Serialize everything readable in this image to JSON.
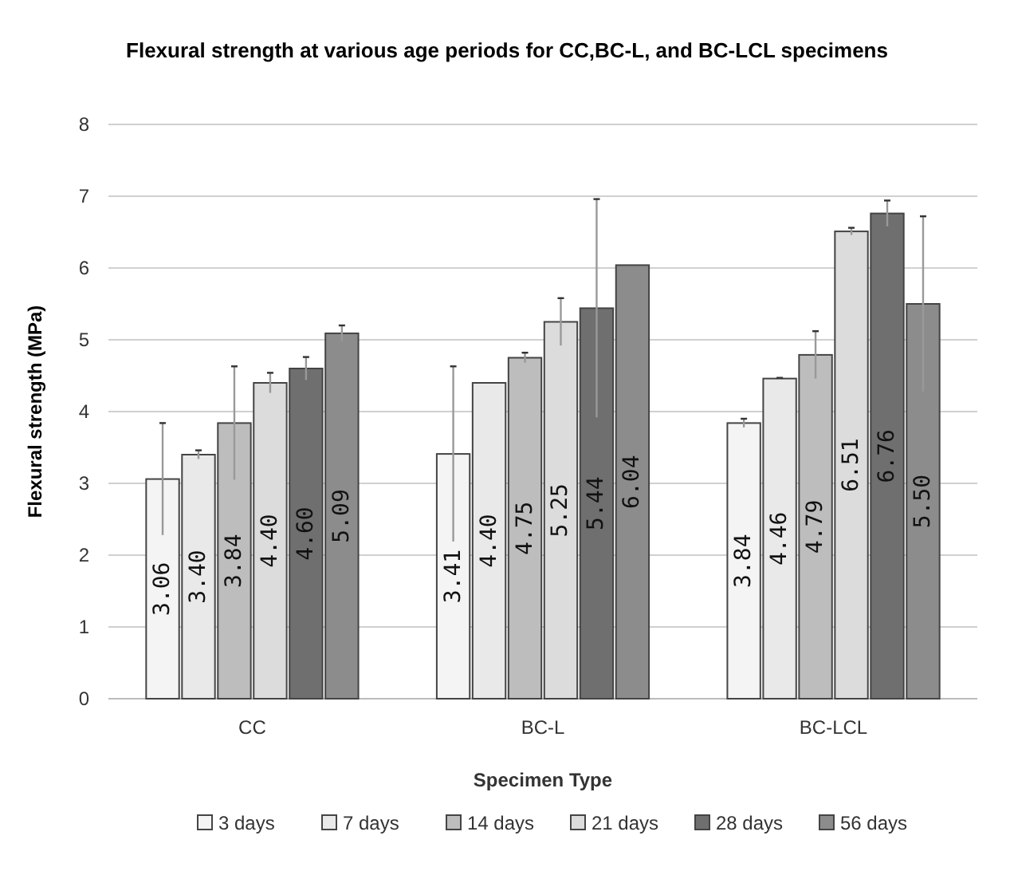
{
  "chart_data": {
    "type": "bar",
    "title": "Flexural strength at various age periods for CC,BC-L, and BC-LCL specimens",
    "xlabel": "Specimen Type",
    "ylabel": "Flexural strength (MPa)",
    "categories": [
      "CC",
      "BC-L",
      "BC-LCL"
    ],
    "series": [
      {
        "name": "3 days",
        "color": "#f4f4f4",
        "values": [
          3.06,
          3.41,
          3.84
        ],
        "value_labels": [
          "3.06",
          "3.41",
          "3.84"
        ],
        "errors": [
          0.78,
          1.22,
          0.06
        ]
      },
      {
        "name": "7 days",
        "color": "#e9e9e9",
        "values": [
          3.4,
          4.4,
          4.46
        ],
        "value_labels": [
          "3.40",
          "4.40",
          "4.46"
        ],
        "errors": [
          0.06,
          null,
          0.01
        ]
      },
      {
        "name": "14 days",
        "color": "#bdbdbd",
        "values": [
          3.84,
          4.75,
          4.79
        ],
        "value_labels": [
          "3.84",
          "4.75",
          "4.79"
        ],
        "errors": [
          0.79,
          0.07,
          0.33
        ]
      },
      {
        "name": "21 days",
        "color": "#dcdcdc",
        "values": [
          4.4,
          5.25,
          6.51
        ],
        "value_labels": [
          "4.40",
          "5.25",
          "6.51"
        ],
        "errors": [
          0.14,
          0.33,
          0.05
        ]
      },
      {
        "name": "28 days",
        "color": "#6f6f6f",
        "values": [
          4.6,
          5.44,
          6.76
        ],
        "value_labels": [
          "4.60",
          "5.44",
          "6.76"
        ],
        "errors": [
          0.16,
          1.52,
          0.18
        ]
      },
      {
        "name": "56 days",
        "color": "#8c8c8c",
        "values": [
          5.09,
          6.04,
          5.5
        ],
        "value_labels": [
          "5.09",
          "6.04",
          "5.50"
        ],
        "errors": [
          0.11,
          null,
          1.22
        ]
      }
    ],
    "ylim": [
      0,
      8
    ],
    "yticks": [
      0,
      1,
      2,
      3,
      4,
      5,
      6,
      7,
      8
    ],
    "grid": "y",
    "legend": "bottom"
  }
}
